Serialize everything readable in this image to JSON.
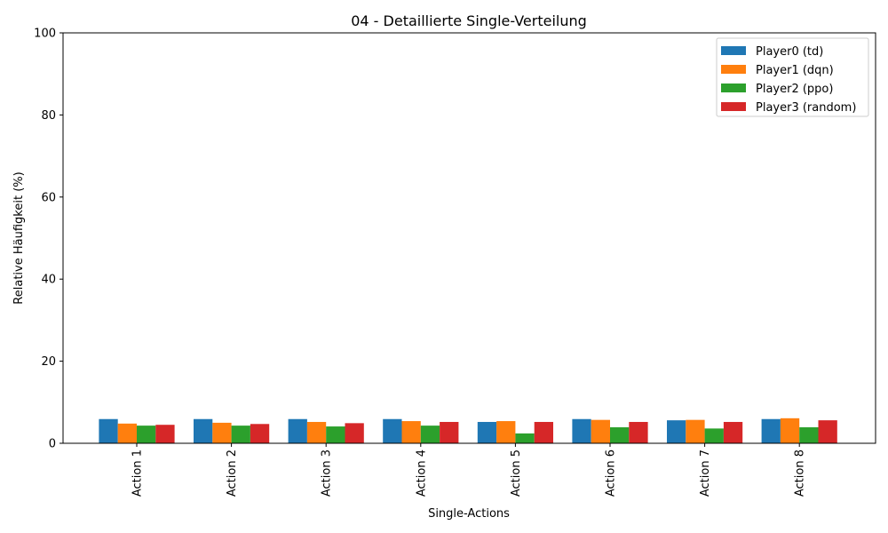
{
  "chart_data": {
    "type": "bar",
    "title": "04 - Detaillierte Single-Verteilung",
    "xlabel": "Single-Actions",
    "ylabel": "Relative Häufigkeit (%)",
    "ylim": [
      0,
      100
    ],
    "yticks": [
      0,
      20,
      40,
      60,
      80,
      100
    ],
    "categories": [
      "Action 1",
      "Action 2",
      "Action 3",
      "Action 4",
      "Action 5",
      "Action 6",
      "Action 7",
      "Action 8"
    ],
    "legend_position": "top-right",
    "grid": false,
    "series": [
      {
        "name": "Player0 (td)",
        "color": "#1f77b4",
        "values": [
          5.9,
          5.9,
          5.9,
          5.9,
          5.2,
          5.9,
          5.6,
          5.9
        ]
      },
      {
        "name": "Player1 (dqn)",
        "color": "#ff7f0e",
        "values": [
          4.8,
          5.0,
          5.2,
          5.4,
          5.4,
          5.7,
          5.7,
          6.1
        ]
      },
      {
        "name": "Player2 (ppo)",
        "color": "#2ca02c",
        "values": [
          4.3,
          4.3,
          4.1,
          4.3,
          2.4,
          3.9,
          3.6,
          3.9
        ]
      },
      {
        "name": "Player3 (random)",
        "color": "#d62728",
        "values": [
          4.5,
          4.7,
          4.9,
          5.2,
          5.2,
          5.2,
          5.2,
          5.6
        ]
      }
    ]
  }
}
